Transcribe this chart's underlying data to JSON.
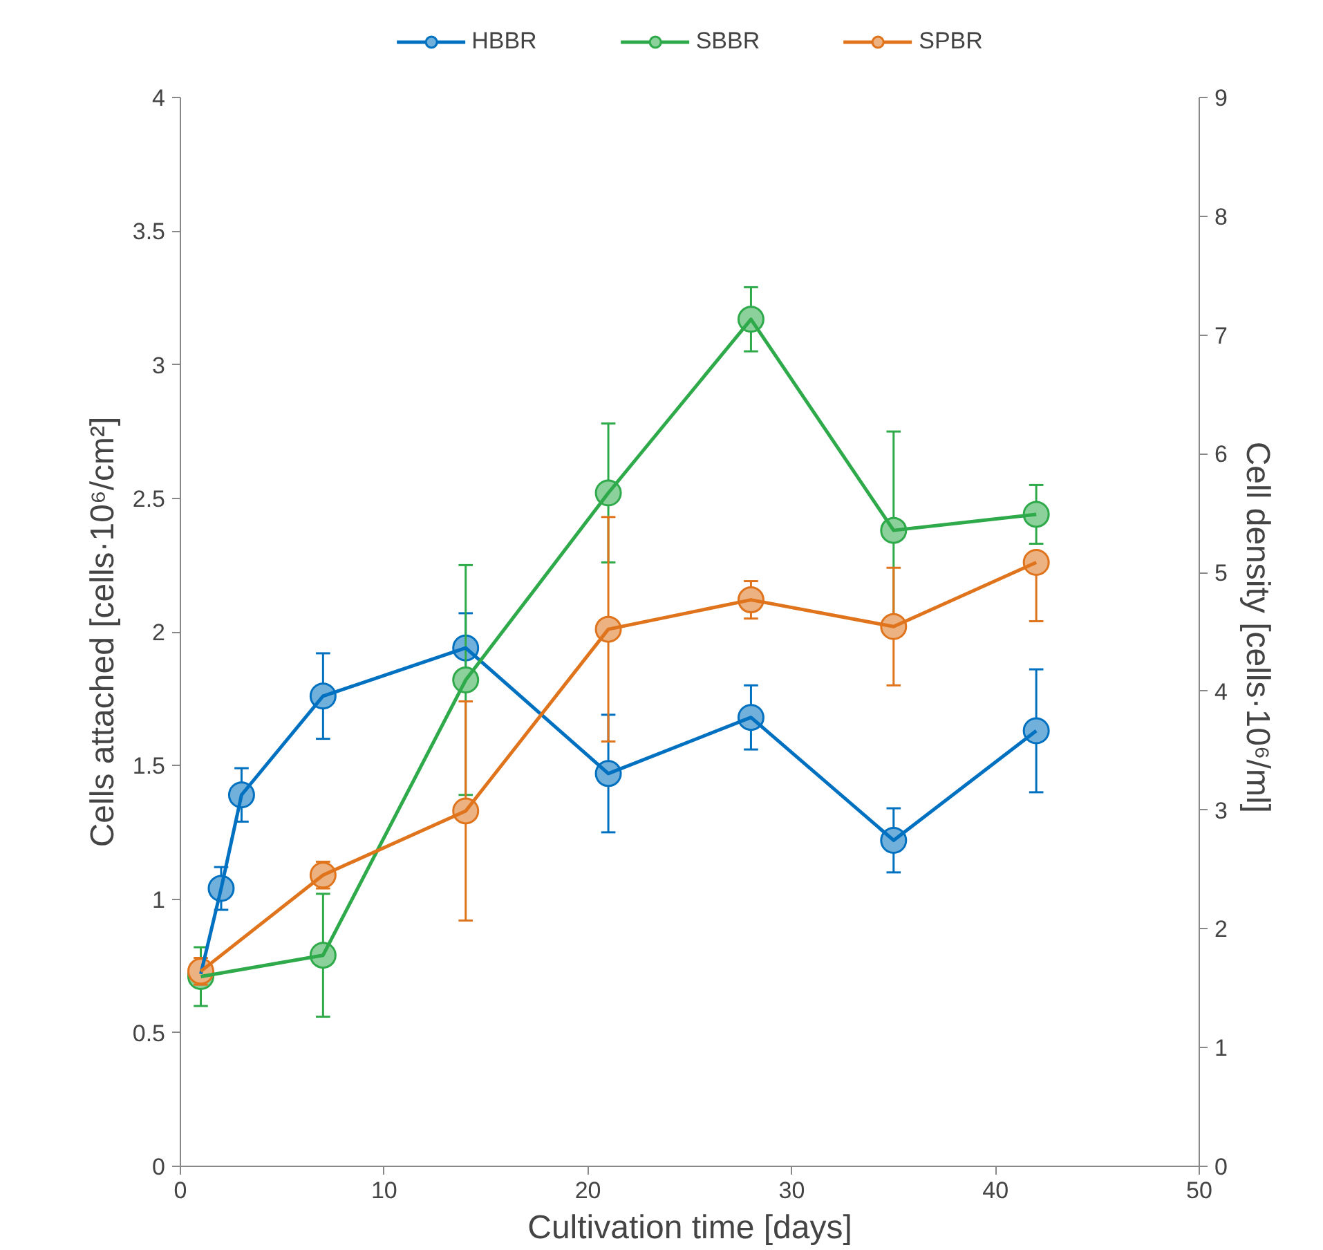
{
  "chart_data": {
    "type": "line",
    "xlabel": "Cultivation time [days]",
    "ylabel": "Cells attached [cells·10⁶/cm²]",
    "y2label": "Cell density  [cells·10⁶/ml]",
    "xlim": [
      0,
      50
    ],
    "xticks": [
      0,
      10,
      20,
      30,
      40,
      50
    ],
    "ylim": [
      0,
      4
    ],
    "yticks": [
      0,
      0.5,
      1,
      1.5,
      2,
      2.5,
      3,
      3.5,
      4
    ],
    "y2lim": [
      0,
      9
    ],
    "y2ticks": [
      0,
      1,
      2,
      3,
      4,
      5,
      6,
      7,
      8,
      9
    ],
    "grid": false,
    "legend": "top",
    "marker": "circle",
    "line_style": "solid",
    "series": [
      {
        "name": "HBBR",
        "color": "#0070c0",
        "x": [
          1,
          2,
          3,
          7,
          14,
          21,
          28,
          35,
          42
        ],
        "values": [
          0.72,
          1.04,
          1.39,
          1.76,
          1.94,
          1.47,
          1.68,
          1.22,
          1.63
        ],
        "errors": [
          null,
          0.08,
          0.1,
          0.16,
          0.13,
          0.22,
          0.12,
          0.12,
          0.23
        ]
      },
      {
        "name": "SBBR",
        "color": "#2eaa4a",
        "x": [
          1,
          7,
          14,
          21,
          28,
          35,
          42
        ],
        "values": [
          0.71,
          0.79,
          1.82,
          2.52,
          3.17,
          2.38,
          2.44
        ],
        "errors": [
          0.11,
          0.23,
          0.43,
          0.26,
          0.12,
          0.37,
          0.11
        ]
      },
      {
        "name": "SPBR",
        "color": "#e0741c",
        "x": [
          1,
          7,
          14,
          21,
          28,
          35,
          42
        ],
        "values": [
          0.73,
          1.09,
          1.33,
          2.01,
          2.12,
          2.02,
          2.26
        ],
        "errors": [
          0.05,
          0.05,
          0.41,
          0.42,
          0.07,
          0.22,
          [
            2.04,
            2.26
          ]
        ]
      }
    ]
  }
}
